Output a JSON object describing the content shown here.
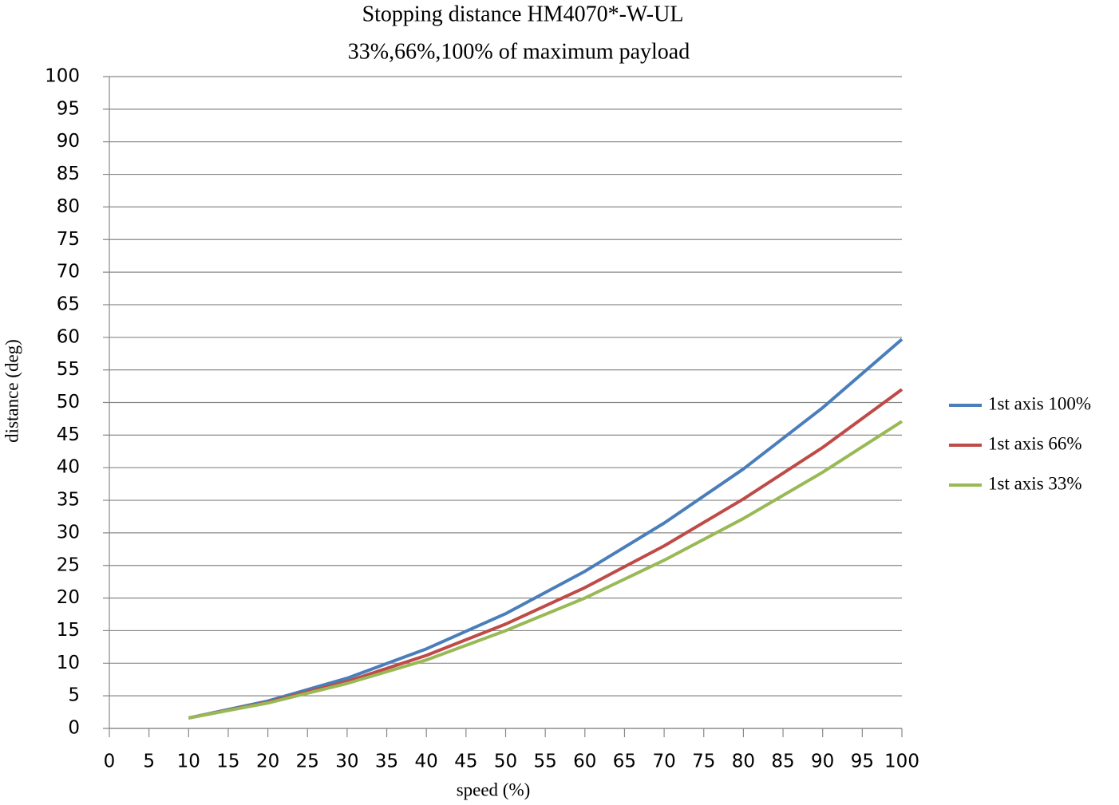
{
  "chart_data": {
    "type": "line",
    "title": "Stopping distance HM4070*-W-UL",
    "subtitle": "33%,66%,100% of maximum payload",
    "x_label": "speed (%)",
    "y_label": "distance (deg)",
    "x": [
      10,
      20,
      30,
      40,
      50,
      60,
      70,
      80,
      90,
      100
    ],
    "series": [
      {
        "name": "1st axis 100%",
        "color": "#4a7ebb",
        "values": [
          1.6,
          4.2,
          7.7,
          12.2,
          17.6,
          24.1,
          31.5,
          39.8,
          49.2,
          59.7
        ]
      },
      {
        "name": "1st axis 66%",
        "color": "#be4b48",
        "values": [
          1.6,
          4.0,
          7.2,
          11.2,
          16.0,
          21.6,
          28.0,
          35.2,
          43.1,
          52.0
        ]
      },
      {
        "name": "1st axis 33%",
        "color": "#98b954",
        "values": [
          1.6,
          3.9,
          6.9,
          10.5,
          15.0,
          20.0,
          25.8,
          32.2,
          39.3,
          47.1
        ]
      }
    ],
    "xlim": [
      0,
      100
    ],
    "xticks": [
      0,
      5,
      10,
      15,
      20,
      25,
      30,
      35,
      40,
      45,
      50,
      55,
      60,
      65,
      70,
      75,
      80,
      85,
      90,
      95,
      100
    ],
    "ylim": [
      0,
      100
    ],
    "yticks": [
      0,
      5,
      10,
      15,
      20,
      25,
      30,
      35,
      40,
      45,
      50,
      55,
      60,
      65,
      70,
      75,
      80,
      85,
      90,
      95,
      100
    ],
    "grid": true,
    "legend": "right"
  }
}
